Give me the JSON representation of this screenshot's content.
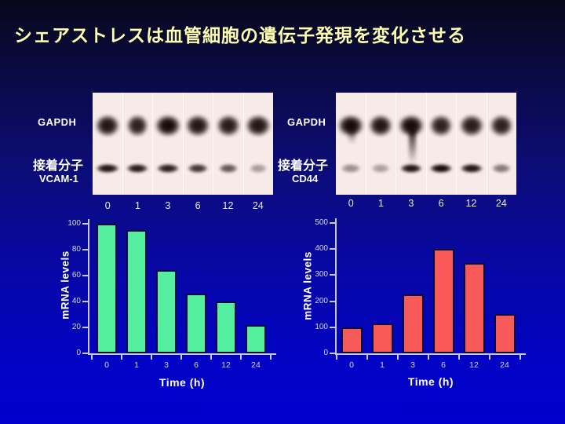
{
  "slide": {
    "title": "シェアストレスは血管細胞の遺伝子発現を変化させる"
  },
  "colors": {
    "background_top": "#08081A",
    "background_bottom": "#0000CE",
    "title_text": "#FFFFB0",
    "film_background": "#F7EBEA",
    "band_color": "#170B09",
    "axis_color": "#C9C9D6",
    "tick_label_color": "#D9D9E4",
    "axis_title_color": "#FFFFFF",
    "lane_time_color": "#EFEFDC",
    "green_bar": "#55EFA0",
    "red_bar": "#F85A5A",
    "bar_outline": "#0A0A38"
  },
  "blots": [
    {
      "control_label": "GAPDH",
      "molecule_label": "接着分子",
      "target_label": "VCAM-1",
      "lane_times": [
        "0",
        "1",
        "3",
        "6",
        "12",
        "24"
      ],
      "gapdh_intensity": [
        0.95,
        0.9,
        1,
        0.95,
        0.92,
        0.95
      ],
      "gapdh_width": [
        34,
        30,
        36,
        34,
        33,
        35
      ],
      "gapdh_tail": [
        0,
        0,
        0,
        0,
        0,
        0
      ],
      "target_intensity": [
        0.95,
        0.92,
        0.9,
        0.8,
        0.65,
        0.35
      ],
      "target_width": [
        33,
        31,
        32,
        29,
        27,
        25
      ]
    },
    {
      "control_label": "GAPDH",
      "molecule_label": "接着分子",
      "target_label": "CD44",
      "lane_times": [
        "0",
        "1",
        "3",
        "6",
        "12",
        "24"
      ],
      "gapdh_intensity": [
        1,
        0.95,
        1,
        0.9,
        0.92,
        0.9
      ],
      "gapdh_width": [
        36,
        33,
        36,
        32,
        34,
        32
      ],
      "gapdh_tail": [
        0.45,
        0,
        1,
        0,
        0,
        0
      ],
      "target_intensity": [
        0.4,
        0.33,
        0.95,
        1,
        0.95,
        0.5
      ],
      "target_width": [
        28,
        26,
        31,
        32,
        32,
        27
      ]
    }
  ],
  "chart_data": [
    {
      "type": "bar",
      "title": "",
      "categories": [
        "0",
        "1",
        "3",
        "6",
        "12",
        "24"
      ],
      "values": [
        100,
        95,
        64,
        46,
        40,
        22
      ],
      "xlabel": "Time (h)",
      "ylabel": "mRNA levels",
      "ylim": [
        0,
        100
      ],
      "yticks": [
        0,
        20,
        40,
        60,
        80,
        100
      ],
      "grid": false,
      "legend": "none",
      "bar_color": "#55EFA0"
    },
    {
      "type": "bar",
      "title": "",
      "categories": [
        "0",
        "1",
        "3",
        "6",
        "12",
        "24"
      ],
      "values": [
        100,
        115,
        225,
        400,
        345,
        150
      ],
      "xlabel": "Time (h)",
      "ylabel": "mRNA levels",
      "ylim": [
        0,
        500
      ],
      "yticks": [
        0,
        100,
        200,
        300,
        400,
        500
      ],
      "grid": false,
      "legend": "none",
      "bar_color": "#F85A5A"
    }
  ]
}
